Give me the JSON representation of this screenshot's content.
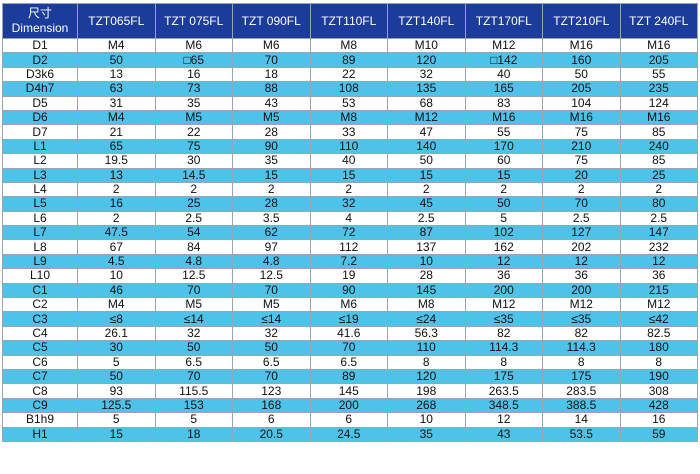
{
  "table": {
    "corner": {
      "zh": "尺寸",
      "en": "Dimension"
    },
    "columns": [
      "TZT065FL",
      "TZT 075FL",
      "TZT 090FL",
      "TZT110FL",
      "TZT140FL",
      "TZT170FL",
      "TZT210FL",
      "TZT 240FL"
    ],
    "rows": [
      [
        "D1",
        "M4",
        "M6",
        "M6",
        "M8",
        "M10",
        "M12",
        "M16",
        "M16"
      ],
      [
        "D2",
        "50",
        "□65",
        "70",
        "89",
        "120",
        "□142",
        "160",
        "205"
      ],
      [
        "D3k6",
        "13",
        "16",
        "18",
        "22",
        "32",
        "40",
        "50",
        "55"
      ],
      [
        "D4h7",
        "63",
        "73",
        "88",
        "108",
        "135",
        "165",
        "205",
        "235"
      ],
      [
        "D5",
        "31",
        "35",
        "43",
        "53",
        "68",
        "83",
        "104",
        "124"
      ],
      [
        "D6",
        "M4",
        "M5",
        "M5",
        "M8",
        "M12",
        "M16",
        "M16",
        "M16"
      ],
      [
        "D7",
        "21",
        "22",
        "28",
        "33",
        "47",
        "55",
        "75",
        "85"
      ],
      [
        "L1",
        "65",
        "75",
        "90",
        "110",
        "140",
        "170",
        "210",
        "240"
      ],
      [
        "L2",
        "19.5",
        "30",
        "35",
        "40",
        "50",
        "60",
        "75",
        "85"
      ],
      [
        "L3",
        "13",
        "14.5",
        "15",
        "15",
        "15",
        "15",
        "20",
        "25"
      ],
      [
        "L4",
        "2",
        "2",
        "2",
        "2",
        "2",
        "2",
        "2",
        "2"
      ],
      [
        "L5",
        "16",
        "25",
        "28",
        "32",
        "45",
        "50",
        "70",
        "80"
      ],
      [
        "L6",
        "2",
        "2.5",
        "3.5",
        "4",
        "2.5",
        "5",
        "2.5",
        "2.5"
      ],
      [
        "L7",
        "47.5",
        "54",
        "62",
        "72",
        "87",
        "102",
        "127",
        "147"
      ],
      [
        "L8",
        "67",
        "84",
        "97",
        "112",
        "137",
        "162",
        "202",
        "232"
      ],
      [
        "L9",
        "4.5",
        "4.8",
        "4.8",
        "7.2",
        "10",
        "12",
        "12",
        "12"
      ],
      [
        "L10",
        "10",
        "12.5",
        "12.5",
        "19",
        "28",
        "36",
        "36",
        "36"
      ],
      [
        "C1",
        "46",
        "70",
        "70",
        "90",
        "145",
        "200",
        "200",
        "215"
      ],
      [
        "C2",
        "M4",
        "M5",
        "M5",
        "M6",
        "M8",
        "M12",
        "M12",
        "M12"
      ],
      [
        "C3",
        "≤8",
        "≤14",
        "≤14",
        "≤19",
        "≤24",
        "≤35",
        "≤35",
        "≤42"
      ],
      [
        "C4",
        "26.1",
        "32",
        "32",
        "41.6",
        "56.3",
        "82",
        "82",
        "82.5"
      ],
      [
        "C5",
        "30",
        "50",
        "50",
        "70",
        "110",
        "114.3",
        "114.3",
        "180"
      ],
      [
        "C6",
        "5",
        "6.5",
        "6.5",
        "6.5",
        "8",
        "8",
        "8",
        "8"
      ],
      [
        "C7",
        "50",
        "70",
        "70",
        "89",
        "120",
        "175",
        "175",
        "190"
      ],
      [
        "C8",
        "93",
        "115.5",
        "123",
        "145",
        "198",
        "263.5",
        "283.5",
        "308"
      ],
      [
        "C9",
        "125.5",
        "153",
        "168",
        "200",
        "268",
        "348.5",
        "388.5",
        "428"
      ],
      [
        "B1h9",
        "5",
        "5",
        "6",
        "6",
        "10",
        "12",
        "14",
        "16"
      ],
      [
        "H1",
        "15",
        "18",
        "20.5",
        "24.5",
        "35",
        "43",
        "53.5",
        "59"
      ]
    ]
  }
}
